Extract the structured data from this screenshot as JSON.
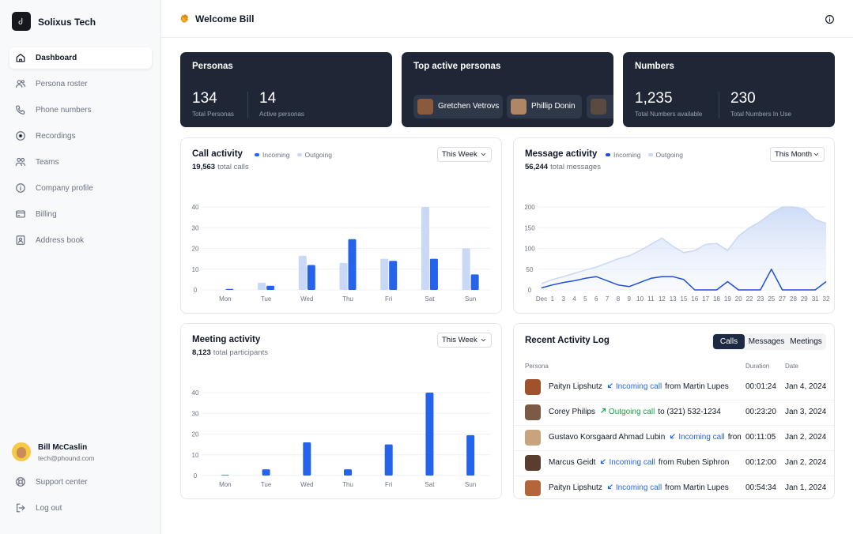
{
  "sidebar": {
    "brand": "Solixus Tech",
    "nav": [
      {
        "label": "Dashboard",
        "active": true
      },
      {
        "label": "Persona roster"
      },
      {
        "label": "Phone numbers"
      },
      {
        "label": "Recordings"
      },
      {
        "label": "Teams"
      },
      {
        "label": "Company profile"
      },
      {
        "label": "Billing"
      },
      {
        "label": "Address book"
      }
    ],
    "user": {
      "name": "Bill McCaslin",
      "email": "tech@phound.com"
    },
    "footer": [
      "Support center",
      "Log out"
    ]
  },
  "header": {
    "title": "Welcome Bill"
  },
  "cards": [
    {
      "title": "Personas",
      "stats": [
        {
          "value": "134",
          "label": "Total Personas"
        },
        {
          "value": "14",
          "label": "Active personas"
        }
      ]
    },
    {
      "title": "Top active personas",
      "people": [
        "Gretchen Vetrovs",
        "Phillip Donin"
      ]
    },
    {
      "title": "Numbers",
      "stats": [
        {
          "value": "1,235",
          "label": "Total Numbers available"
        },
        {
          "value": "230",
          "label": "Total Numbers In Use"
        }
      ]
    }
  ],
  "chart_data": [
    {
      "type": "bar",
      "title": "Call activity",
      "total": "19,563",
      "total_label": "total calls",
      "period": "This Week",
      "categories": [
        "Mon",
        "Tue",
        "Wed",
        "Thu",
        "Fri",
        "Sat",
        "Sun"
      ],
      "series": [
        {
          "name": "Incoming",
          "color": "#2563eb",
          "values": [
            0.5,
            2,
            12,
            24.5,
            14,
            15,
            7.5
          ]
        },
        {
          "name": "Outgoing",
          "color": "#c9d8f6",
          "values": [
            0,
            3.5,
            16.5,
            13,
            15,
            40,
            20
          ]
        }
      ],
      "ylim": [
        0,
        40
      ],
      "yticks": [
        0,
        10,
        20,
        30,
        40
      ],
      "grid": true
    },
    {
      "type": "line",
      "title": "Message activity",
      "total": "56,244",
      "total_label": "total messages",
      "period": "This Month",
      "categories": [
        "Dec",
        "1",
        "3",
        "4",
        "5",
        "6",
        "7",
        "8",
        "9",
        "10",
        "11",
        "12",
        "13",
        "15",
        "16",
        "17",
        "18",
        "19",
        "20",
        "22",
        "23",
        "25",
        "27",
        "28",
        "29",
        "31",
        "32"
      ],
      "series": [
        {
          "name": "Incoming",
          "color": "#1d4ed8",
          "mark": "line",
          "values": [
            5,
            12,
            18,
            22,
            28,
            32,
            22,
            12,
            8,
            18,
            28,
            32,
            32,
            25,
            0,
            0,
            0,
            20,
            0,
            0,
            0,
            50,
            0,
            0,
            0,
            0,
            20
          ]
        },
        {
          "name": "Outgoing",
          "color": "#c9d8f6",
          "mark": "area",
          "values": [
            15,
            25,
            32,
            40,
            48,
            55,
            65,
            75,
            82,
            95,
            110,
            125,
            105,
            90,
            95,
            110,
            112,
            95,
            130,
            150,
            165,
            185,
            200,
            200,
            195,
            170,
            160
          ]
        }
      ],
      "ylim": [
        0,
        200
      ],
      "yticks": [
        0,
        50,
        100,
        150,
        200
      ],
      "grid": true
    },
    {
      "type": "bar",
      "title": "Meeting activity",
      "total": "8,123",
      "total_label": "total participants",
      "period": "This Week",
      "categories": [
        "Mon",
        "Tue",
        "Wed",
        "Thu",
        "Fri",
        "Sat",
        "Sun"
      ],
      "values": [
        0.3,
        3,
        16,
        3,
        15,
        40,
        19.5
      ],
      "color": "#2563eb",
      "ylim": [
        0,
        40
      ],
      "yticks": [
        0,
        10,
        20,
        30,
        40
      ],
      "grid": true
    }
  ],
  "activity_log": {
    "title": "Recent Activity Log",
    "tabs": [
      {
        "label": "Calls",
        "active": true
      },
      {
        "label": "Messages"
      },
      {
        "label": "Meetings"
      }
    ],
    "columns": [
      "Persona",
      "Duration",
      "Date"
    ],
    "rows": [
      {
        "name": "Paityn Lipshutz",
        "direction": "incoming",
        "action": "Incoming call",
        "detail": "from Martin Lupes",
        "duration": "00:01:24",
        "date": "Jan 4, 2024"
      },
      {
        "name": "Corey Philips",
        "direction": "outgoing",
        "action": "Outgoing call",
        "detail": "to (321) 532-1234",
        "duration": "00:23:20",
        "date": "Jan 3, 2024"
      },
      {
        "name": "Gustavo Korsgaard Ahmad Lubin",
        "direction": "incoming",
        "action": "Incoming call",
        "detail": "from...",
        "duration": "00:11:05",
        "date": "Jan 2, 2024"
      },
      {
        "name": "Marcus Geidt",
        "direction": "incoming",
        "action": "Incoming call",
        "detail": "from Ruben Siphron",
        "duration": "00:12:00",
        "date": "Jan 2, 2024"
      },
      {
        "name": "Paityn Lipshutz",
        "direction": "incoming",
        "action": "Incoming call",
        "detail": "from Martin Lupes",
        "duration": "00:54:34",
        "date": "Jan 1, 2024"
      }
    ]
  }
}
